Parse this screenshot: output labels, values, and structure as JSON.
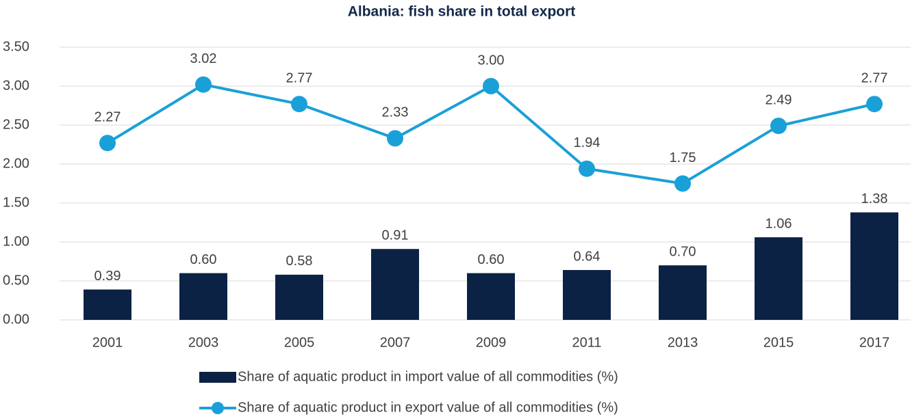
{
  "chart_data": {
    "type": "combo",
    "title": "Albania: fish share in total export",
    "categories": [
      "2001",
      "2003",
      "2005",
      "2007",
      "2009",
      "2011",
      "2013",
      "2015",
      "2017"
    ],
    "series": [
      {
        "name": "Share of aquatic product in import value of all commodities (%)",
        "type": "bar",
        "color": "#0b2244",
        "values": [
          0.39,
          0.6,
          0.58,
          0.91,
          0.6,
          0.64,
          0.7,
          1.06,
          1.38
        ],
        "value_labels": [
          "0.39",
          "0.60",
          "0.58",
          "0.91",
          "0.60",
          "0.64",
          "0.70",
          "1.06",
          "1.38"
        ]
      },
      {
        "name": "Share of aquatic product in export value of all commodities (%)",
        "type": "line",
        "color": "#1aa0d8",
        "values": [
          2.27,
          3.02,
          2.77,
          2.33,
          3.0,
          1.94,
          1.75,
          2.49,
          2.77
        ],
        "value_labels": [
          "2.27",
          "3.02",
          "2.77",
          "2.33",
          "3.00",
          "1.94",
          "1.75",
          "2.49",
          "2.77"
        ]
      }
    ],
    "ylim": [
      0,
      3.5
    ],
    "yticks": [
      {
        "value": 0,
        "label": "0.00"
      },
      {
        "value": 0.5,
        "label": "0.50"
      },
      {
        "value": 1,
        "label": "1.00"
      },
      {
        "value": 1.5,
        "label": "1.50"
      },
      {
        "value": 2,
        "label": "2.00"
      },
      {
        "value": 2.5,
        "label": "2.50"
      },
      {
        "value": 3,
        "label": "3.00"
      },
      {
        "value": 3.5,
        "label": "3.50"
      }
    ],
    "grid": true,
    "legend": "bottom"
  }
}
